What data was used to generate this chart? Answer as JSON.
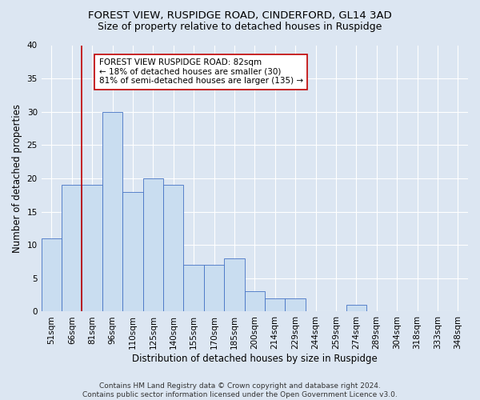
{
  "title": "FOREST VIEW, RUSPIDGE ROAD, CINDERFORD, GL14 3AD",
  "subtitle": "Size of property relative to detached houses in Ruspidge",
  "xlabel": "Distribution of detached houses by size in Ruspidge",
  "ylabel": "Number of detached properties",
  "bar_labels": [
    "51sqm",
    "66sqm",
    "81sqm",
    "96sqm",
    "110sqm",
    "125sqm",
    "140sqm",
    "155sqm",
    "170sqm",
    "185sqm",
    "200sqm",
    "214sqm",
    "229sqm",
    "244sqm",
    "259sqm",
    "274sqm",
    "289sqm",
    "304sqm",
    "318sqm",
    "333sqm",
    "348sqm"
  ],
  "bar_values": [
    11,
    19,
    19,
    30,
    18,
    20,
    19,
    7,
    7,
    8,
    3,
    2,
    2,
    0,
    0,
    1,
    0,
    0,
    0,
    0,
    0
  ],
  "bar_color": "#c9ddf0",
  "bar_edgecolor": "#4472c4",
  "vline_color": "#c00000",
  "annotation_text": "FOREST VIEW RUSPIDGE ROAD: 82sqm\n← 18% of detached houses are smaller (30)\n81% of semi-detached houses are larger (135) →",
  "annotation_box_color": "#ffffff",
  "annotation_box_edgecolor": "#c00000",
  "ylim": [
    0,
    40
  ],
  "yticks": [
    0,
    5,
    10,
    15,
    20,
    25,
    30,
    35,
    40
  ],
  "footer_text": "Contains HM Land Registry data © Crown copyright and database right 2024.\nContains public sector information licensed under the Open Government Licence v3.0.",
  "background_color": "#dce6f2",
  "plot_bg_color": "#dce6f2",
  "grid_color": "#ffffff",
  "title_fontsize": 9.5,
  "subtitle_fontsize": 9,
  "axis_label_fontsize": 8.5,
  "tick_fontsize": 7.5,
  "annotation_fontsize": 7.5,
  "footer_fontsize": 6.5
}
